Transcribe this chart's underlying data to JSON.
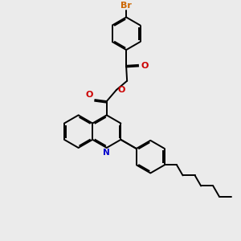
{
  "background_color": "#ebebeb",
  "bond_color": "#000000",
  "N_color": "#0000cc",
  "O_color": "#cc0000",
  "Br_color": "#cc6600",
  "lw": 1.4,
  "dbo": 0.055,
  "figsize": [
    3.0,
    3.0
  ],
  "dpi": 100,
  "xlim": [
    0,
    10
  ],
  "ylim": [
    0,
    10
  ]
}
